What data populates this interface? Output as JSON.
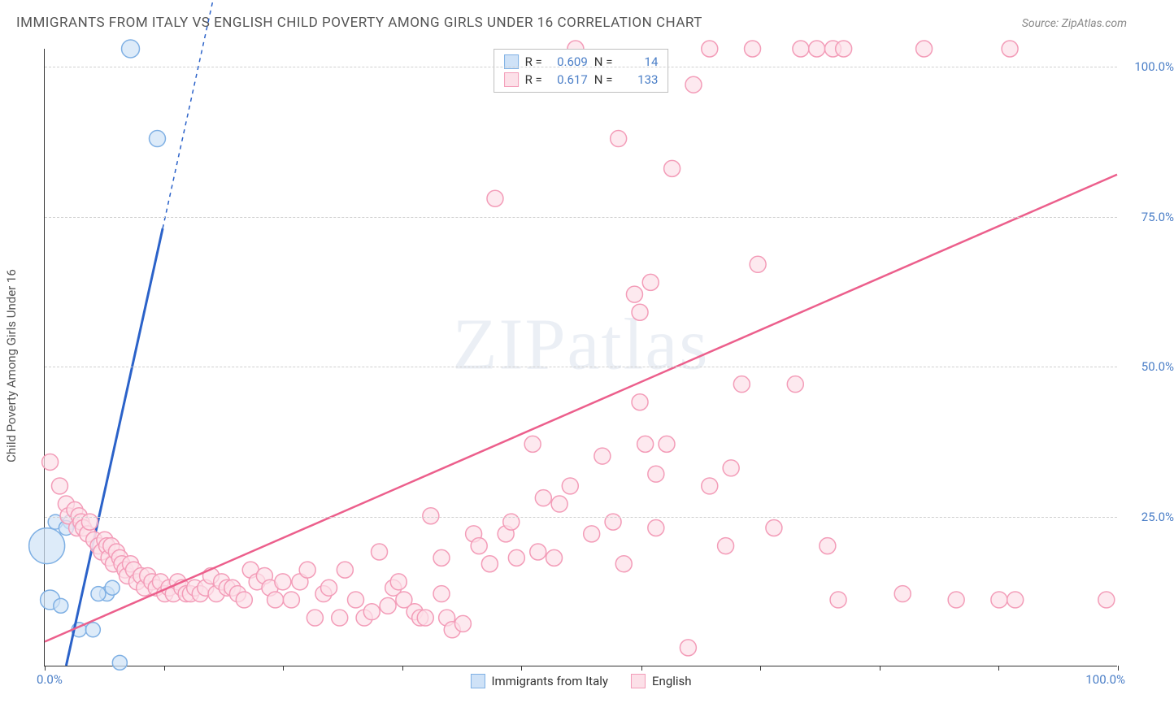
{
  "title": "IMMIGRANTS FROM ITALY VS ENGLISH CHILD POVERTY AMONG GIRLS UNDER 16 CORRELATION CHART",
  "source_label": "Source:",
  "source_value": "ZipAtlas.com",
  "y_axis_label": "Child Poverty Among Girls Under 16",
  "watermark": "ZIPatlas",
  "chart": {
    "type": "scatter",
    "background_color": "#ffffff",
    "grid_color": "#d0d0d0",
    "grid_dash": "4,4",
    "axis_color": "#333333",
    "tick_label_color": "#4a7ec7",
    "xlim": [
      0,
      100
    ],
    "ylim": [
      0,
      103
    ],
    "x_ticks": [
      0,
      11.1,
      22.2,
      33.3,
      44.4,
      55.6,
      66.7,
      77.8,
      88.9,
      100
    ],
    "x_start_label": "0.0%",
    "x_end_label": "100.0%",
    "y_ticks": [
      {
        "value": 25,
        "label": "25.0%"
      },
      {
        "value": 50,
        "label": "50.0%"
      },
      {
        "value": 75,
        "label": "75.0%"
      },
      {
        "value": 100,
        "label": "100.0%"
      }
    ],
    "series": [
      {
        "id": "italy",
        "name": "Immigrants from Italy",
        "marker_fill": "#cfe2f7",
        "marker_stroke": "#7fb0e4",
        "fill_opacity": 0.7,
        "default_radius": 9,
        "trend_color": "#2b62c9",
        "trend_width": 3,
        "trend_dash_extension": true,
        "trend": {
          "x1": 2,
          "y1": 0,
          "x2": 11,
          "y2": 73,
          "x2_dash": 15.8,
          "y2_dash": 112
        },
        "R_label": "R =",
        "R_value": "0.609",
        "N_label": "N =",
        "N_value": "14",
        "points": [
          {
            "x": 0.2,
            "y": 20,
            "r": 22
          },
          {
            "x": 0.5,
            "y": 11,
            "r": 12
          },
          {
            "x": 1.5,
            "y": 10,
            "r": 9
          },
          {
            "x": 1.0,
            "y": 24,
            "r": 9
          },
          {
            "x": 2.4,
            "y": 24,
            "r": 9
          },
          {
            "x": 3.2,
            "y": 6,
            "r": 9
          },
          {
            "x": 4.5,
            "y": 6,
            "r": 9
          },
          {
            "x": 5.8,
            "y": 12,
            "r": 9
          },
          {
            "x": 6.3,
            "y": 13,
            "r": 9
          },
          {
            "x": 7.0,
            "y": 0.5,
            "r": 9
          },
          {
            "x": 5.0,
            "y": 12,
            "r": 9
          },
          {
            "x": 8.0,
            "y": 103,
            "r": 11
          },
          {
            "x": 10.5,
            "y": 88,
            "r": 10
          },
          {
            "x": 2.0,
            "y": 23,
            "r": 9
          }
        ]
      },
      {
        "id": "english",
        "name": "English",
        "marker_fill": "#fce0e8",
        "marker_stroke": "#f39cb8",
        "fill_opacity": 0.7,
        "default_radius": 10,
        "trend_color": "#ec5f8c",
        "trend_width": 2.5,
        "trend_dash_extension": false,
        "trend": {
          "x1": 0,
          "y1": 4,
          "x2": 100,
          "y2": 82
        },
        "R_label": "R =",
        "R_value": "0.617",
        "N_label": "N =",
        "N_value": "133",
        "points": [
          {
            "x": 0.5,
            "y": 34
          },
          {
            "x": 1.4,
            "y": 30
          },
          {
            "x": 2.0,
            "y": 27
          },
          {
            "x": 2.2,
            "y": 25
          },
          {
            "x": 2.8,
            "y": 26
          },
          {
            "x": 3.0,
            "y": 23
          },
          {
            "x": 3.2,
            "y": 25
          },
          {
            "x": 3.4,
            "y": 24
          },
          {
            "x": 3.6,
            "y": 23
          },
          {
            "x": 4.0,
            "y": 22
          },
          {
            "x": 4.2,
            "y": 24
          },
          {
            "x": 4.6,
            "y": 21
          },
          {
            "x": 5.0,
            "y": 20
          },
          {
            "x": 5.3,
            "y": 19
          },
          {
            "x": 5.6,
            "y": 21
          },
          {
            "x": 5.8,
            "y": 20
          },
          {
            "x": 6.0,
            "y": 18
          },
          {
            "x": 6.2,
            "y": 20
          },
          {
            "x": 6.4,
            "y": 17
          },
          {
            "x": 6.7,
            "y": 19
          },
          {
            "x": 7.0,
            "y": 18
          },
          {
            "x": 7.2,
            "y": 17
          },
          {
            "x": 7.5,
            "y": 16
          },
          {
            "x": 7.7,
            "y": 15
          },
          {
            "x": 8.0,
            "y": 17
          },
          {
            "x": 8.3,
            "y": 16
          },
          {
            "x": 8.6,
            "y": 14
          },
          {
            "x": 9.0,
            "y": 15
          },
          {
            "x": 9.3,
            "y": 13
          },
          {
            "x": 9.6,
            "y": 15
          },
          {
            "x": 10.0,
            "y": 14
          },
          {
            "x": 10.4,
            "y": 13
          },
          {
            "x": 10.8,
            "y": 14
          },
          {
            "x": 11.2,
            "y": 12
          },
          {
            "x": 11.6,
            "y": 13
          },
          {
            "x": 12.0,
            "y": 12
          },
          {
            "x": 12.4,
            "y": 14
          },
          {
            "x": 12.8,
            "y": 13
          },
          {
            "x": 13.2,
            "y": 12
          },
          {
            "x": 13.6,
            "y": 12
          },
          {
            "x": 14.0,
            "y": 13
          },
          {
            "x": 14.5,
            "y": 12
          },
          {
            "x": 15.0,
            "y": 13
          },
          {
            "x": 15.5,
            "y": 15
          },
          {
            "x": 16.0,
            "y": 12
          },
          {
            "x": 16.5,
            "y": 14
          },
          {
            "x": 17.0,
            "y": 13
          },
          {
            "x": 17.5,
            "y": 13
          },
          {
            "x": 18.0,
            "y": 12
          },
          {
            "x": 18.6,
            "y": 11
          },
          {
            "x": 19.2,
            "y": 16
          },
          {
            "x": 19.8,
            "y": 14
          },
          {
            "x": 20.5,
            "y": 15
          },
          {
            "x": 21.0,
            "y": 13
          },
          {
            "x": 21.5,
            "y": 11
          },
          {
            "x": 22.2,
            "y": 14
          },
          {
            "x": 23.0,
            "y": 11
          },
          {
            "x": 23.8,
            "y": 14
          },
          {
            "x": 24.5,
            "y": 16
          },
          {
            "x": 25.2,
            "y": 8
          },
          {
            "x": 26.0,
            "y": 12
          },
          {
            "x": 26.5,
            "y": 13
          },
          {
            "x": 27.5,
            "y": 8
          },
          {
            "x": 28.0,
            "y": 16
          },
          {
            "x": 29.0,
            "y": 11
          },
          {
            "x": 29.8,
            "y": 8
          },
          {
            "x": 30.5,
            "y": 9
          },
          {
            "x": 31.2,
            "y": 19
          },
          {
            "x": 32.0,
            "y": 10
          },
          {
            "x": 32.5,
            "y": 13
          },
          {
            "x": 33.0,
            "y": 14
          },
          {
            "x": 33.5,
            "y": 11
          },
          {
            "x": 34.5,
            "y": 9
          },
          {
            "x": 35.0,
            "y": 8
          },
          {
            "x": 35.5,
            "y": 8
          },
          {
            "x": 36.0,
            "y": 25
          },
          {
            "x": 37.0,
            "y": 12
          },
          {
            "x": 37.0,
            "y": 18
          },
          {
            "x": 37.5,
            "y": 8
          },
          {
            "x": 38.0,
            "y": 6
          },
          {
            "x": 39.0,
            "y": 7
          },
          {
            "x": 40.0,
            "y": 22
          },
          {
            "x": 40.5,
            "y": 20
          },
          {
            "x": 41.5,
            "y": 17
          },
          {
            "x": 42.0,
            "y": 78
          },
          {
            "x": 43.0,
            "y": 22
          },
          {
            "x": 43.5,
            "y": 24
          },
          {
            "x": 44.0,
            "y": 18
          },
          {
            "x": 45.5,
            "y": 37
          },
          {
            "x": 46.0,
            "y": 19
          },
          {
            "x": 46.5,
            "y": 28
          },
          {
            "x": 47.5,
            "y": 18
          },
          {
            "x": 48.0,
            "y": 27
          },
          {
            "x": 49.0,
            "y": 30
          },
          {
            "x": 49.5,
            "y": 103
          },
          {
            "x": 51.0,
            "y": 22
          },
          {
            "x": 52.0,
            "y": 35
          },
          {
            "x": 53.0,
            "y": 24
          },
          {
            "x": 53.5,
            "y": 88
          },
          {
            "x": 54.0,
            "y": 17
          },
          {
            "x": 55.0,
            "y": 62
          },
          {
            "x": 55.5,
            "y": 44
          },
          {
            "x": 55.5,
            "y": 59
          },
          {
            "x": 56.0,
            "y": 37
          },
          {
            "x": 56.5,
            "y": 64
          },
          {
            "x": 57.0,
            "y": 23
          },
          {
            "x": 57.0,
            "y": 32
          },
          {
            "x": 58.0,
            "y": 37
          },
          {
            "x": 58.5,
            "y": 83
          },
          {
            "x": 60.0,
            "y": 3
          },
          {
            "x": 60.5,
            "y": 97
          },
          {
            "x": 62.0,
            "y": 30
          },
          {
            "x": 62.0,
            "y": 103
          },
          {
            "x": 63.5,
            "y": 20
          },
          {
            "x": 64.0,
            "y": 33
          },
          {
            "x": 65.0,
            "y": 47
          },
          {
            "x": 66.0,
            "y": 103
          },
          {
            "x": 66.5,
            "y": 67
          },
          {
            "x": 68.0,
            "y": 23
          },
          {
            "x": 70.0,
            "y": 47
          },
          {
            "x": 70.5,
            "y": 103
          },
          {
            "x": 72.0,
            "y": 103
          },
          {
            "x": 73.0,
            "y": 20
          },
          {
            "x": 73.5,
            "y": 103
          },
          {
            "x": 74.0,
            "y": 11
          },
          {
            "x": 74.5,
            "y": 103
          },
          {
            "x": 80.0,
            "y": 12
          },
          {
            "x": 82.0,
            "y": 103
          },
          {
            "x": 85.0,
            "y": 11
          },
          {
            "x": 89.0,
            "y": 11
          },
          {
            "x": 90.0,
            "y": 103
          },
          {
            "x": 90.5,
            "y": 11
          },
          {
            "x": 99.0,
            "y": 11
          }
        ]
      }
    ]
  }
}
